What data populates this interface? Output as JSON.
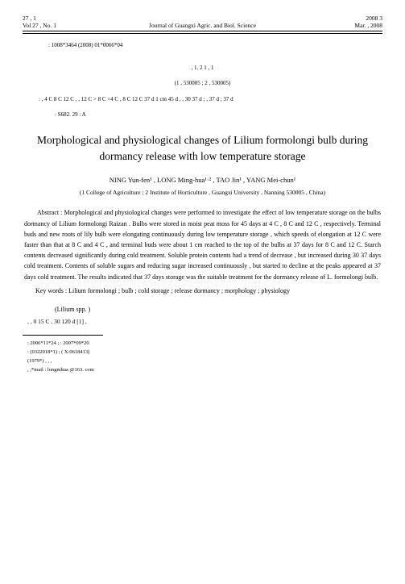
{
  "header": {
    "vol_line1": "27 ,   1",
    "vol_line2": "Vol 27 ,  No. 1",
    "journal": "Journal of Guangxi Agric. and Biol. Science",
    "date_line1": "2008     3",
    "date_line2": "Mar. ,  2008"
  },
  "issn": ": 1008*3464 (2008) 01*0066*04",
  "chinese_authors_line": ",            1. 2          1 ,            1",
  "chinese_affil": "(1                                    ,                   530005 ; 2                                    ,                   530005)",
  "chinese_body": "    :                                                                    ,       4 C   8 C   12 C                                          ,                                                                            ,          12 C      >  8 C   >4 C    ,    8 C   12 C    37 d                                  1 cm    45 d           ,                                                                    ,      30   37 d         ;                                                         ,             37 d                               ;                                                                                               37 d",
  "classification": ": S682. 29                            : A",
  "title_en": "Morphological and physiological changes of Lilium formolongi bulb during dormancy release with low temperature storage",
  "authors_en": "NING Yun-fen¹ , LONG Ming-hua¹·² , TAO Jin¹ , YANG Mei-chun¹",
  "affil_en": "(1  College of Agriculture ; 2  Institute of Horticulture , Guangxi University , Nanning 530005 , China)",
  "abstract_en": "Abstract : Morphological and physiological changes were performed to investigate the effect of low temperature storage on the bulbs dormancy of Lilium formolongi Raizan . Bulbs were stored in moist peat moss for 45 days at 4 C , 8 C and 12 C , respectively. Terminal buds and new roots of lily bulb were elongating continuously during low temperature storage , which speeds of elongation at 12 C were faster than that at 8 C and 4 C , and terminal buds were about 1 cm reached to the top of the bulbs at 37 days for 8 C and 12 C. Starch contents decreased significantly during cold treatment. Soluble protein contents had a trend of decrease , but increased during 30   37 days cold treatment. Contents of soluble sugars and reducing sugar increased continuously , but started to decline at the peaks appeared at 37 days cold treatment. The results indicated that 37 days storage was the suitable treatment for the dormancy release of L. formolongi bulb.",
  "keywords_en": "Key words : Lilium formolongi ; bulb ; cold storage ; release dormancy ; morphology ; physiology",
  "lilium_sp": "(Lilium spp. )",
  "bottom_text": "                     ,                               ,                                                                                                                 0   15 C ,         30   120 d                    [1] ,",
  "footnotes": {
    "f1": ": 2006*11*24 ;                     : 2007*09*20",
    "f2": ":                           (0322018*1) ;                                    ( X:0618413)",
    "f3": "(1979*)  ,                  ,                           ,",
    "f4": ",       ;*mail : longmhua @163. com"
  }
}
